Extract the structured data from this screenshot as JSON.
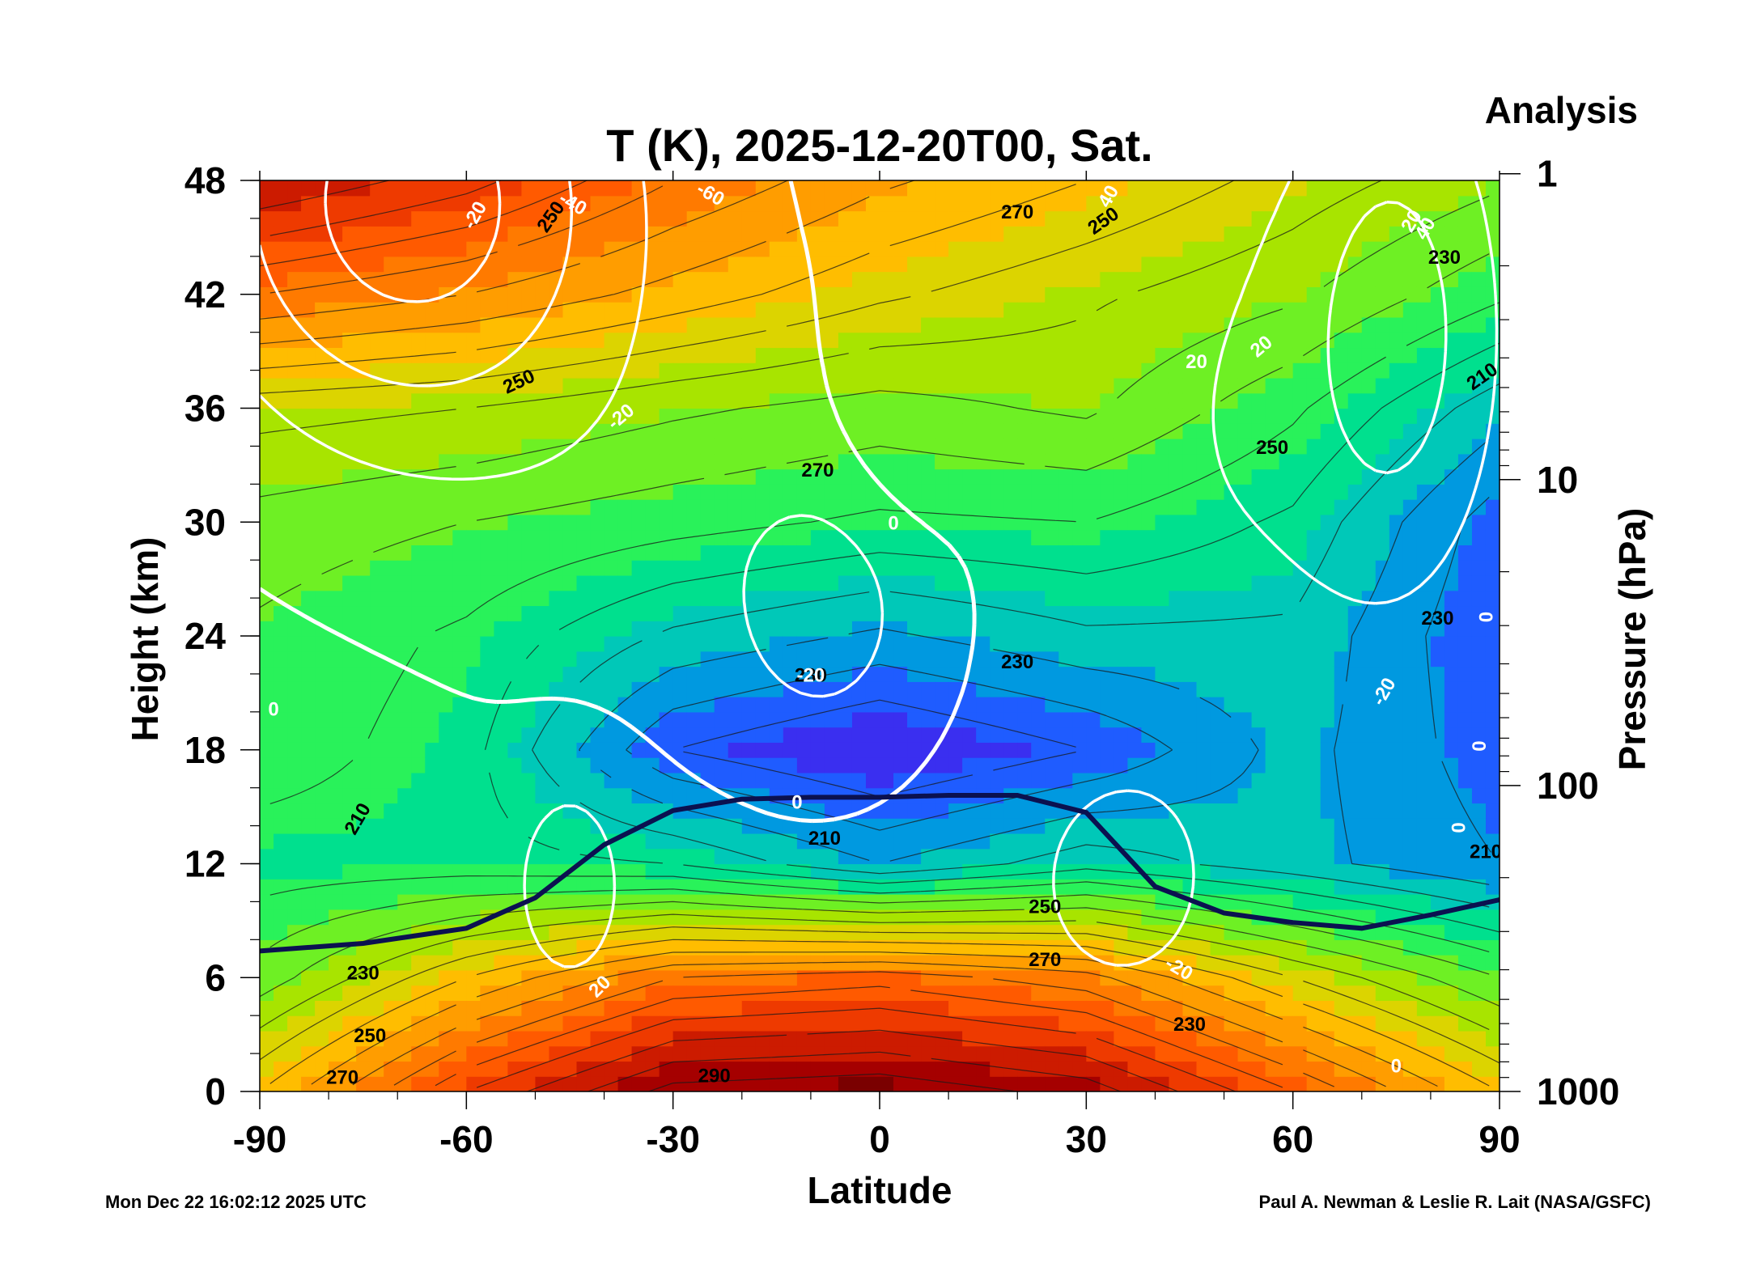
{
  "chart_data": {
    "type": "heatmap",
    "title": "T (K), 2025-12-20T00, Sat.",
    "subtitle": "Analysis",
    "xlabel": "Latitude",
    "ylabel": "Height (km)",
    "y2label": "Pressure (hPa)",
    "xlim": [
      -90,
      90
    ],
    "ylim": [
      0,
      48
    ],
    "x_ticks": [
      "-90",
      "-60",
      "-30",
      "0",
      "30",
      "60",
      "90"
    ],
    "y_ticks": [
      "0",
      "6",
      "12",
      "18",
      "24",
      "30",
      "36",
      "42",
      "48"
    ],
    "y2_ticks": [
      "1000",
      "100",
      "10",
      "1"
    ],
    "grid": false,
    "temperature_field_K": {
      "lat": [
        -90,
        -60,
        -30,
        0,
        30,
        60,
        90
      ],
      "height_km": [
        0,
        6,
        12,
        18,
        24,
        30,
        36,
        42,
        48
      ],
      "values": [
        [
          250,
          275,
          292,
          294,
          288,
          270,
          250
        ],
        [
          232,
          250,
          265,
          268,
          262,
          245,
          230
        ],
        [
          222,
          222,
          220,
          210,
          218,
          212,
          205
        ],
        [
          228,
          222,
          200,
          193,
          200,
          212,
          202
        ],
        [
          229,
          224,
          214,
          209,
          214,
          214,
          200
        ],
        [
          233,
          230,
          227,
          224,
          225,
          219,
          202
        ],
        [
          242,
          240,
          236,
          233,
          236,
          226,
          212
        ],
        [
          265,
          260,
          253,
          246,
          241,
          236,
          226
        ],
        [
          285,
          277,
          265,
          256,
          250,
          243,
          236
        ]
      ]
    },
    "temperature_contour_labels": [
      "290",
      "270",
      "250",
      "230",
      "210",
      "230",
      "210",
      "230",
      "250",
      "270",
      "230",
      "250",
      "270",
      "250",
      "230",
      "210",
      "230",
      "210",
      "250",
      "270",
      "250"
    ],
    "white_contour_labels": [
      "0",
      "0",
      "-20",
      "-20",
      "-40",
      "-60",
      "-20",
      "0",
      "-20",
      "20",
      "20",
      "40",
      "20",
      "40",
      "-20",
      "0",
      "0",
      "0",
      "0",
      "20",
      "-20"
    ],
    "tropopause_line": {
      "lat": [
        -90,
        -75,
        -60,
        -50,
        -40,
        -30,
        -20,
        -10,
        0,
        10,
        20,
        30,
        40,
        50,
        60,
        70,
        80,
        90
      ],
      "height_km": [
        7.4,
        7.8,
        8.6,
        10.2,
        13.0,
        14.8,
        15.4,
        15.5,
        15.5,
        15.6,
        15.6,
        14.7,
        10.8,
        9.4,
        8.9,
        8.6,
        9.3,
        10.1
      ]
    },
    "colorbar": [
      "#7a0000",
      "#a50000",
      "#cc1b00",
      "#ee3a00",
      "#ff5a00",
      "#ff7a00",
      "#ff9d00",
      "#ffbd00",
      "#dcd400",
      "#a8e400",
      "#6ef024",
      "#29f25a",
      "#00e08e",
      "#00c8b8",
      "#0099e0",
      "#1f5cff",
      "#3a2ff0"
    ]
  },
  "footer": {
    "left": "Mon Dec 22 16:02:12 2025 UTC",
    "right": "Paul A. Newman & Leslie R. Lait (NASA/GSFC)"
  }
}
